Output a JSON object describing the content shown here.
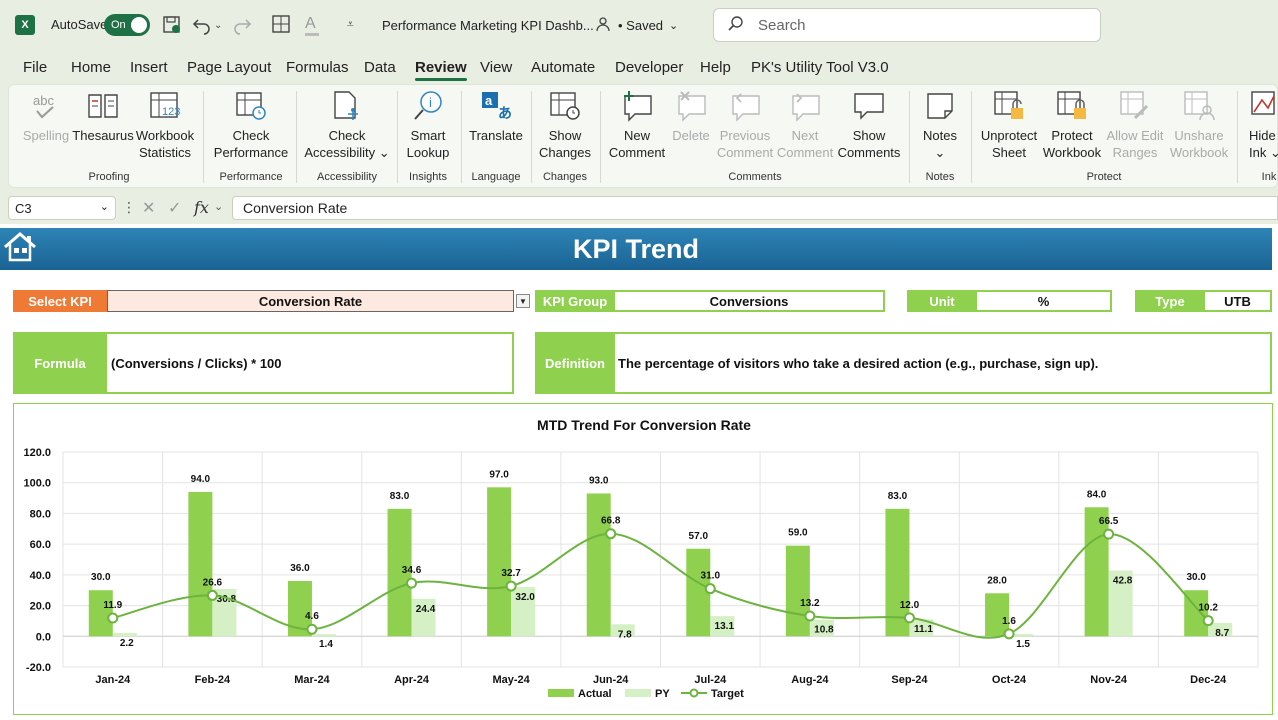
{
  "titlebar": {
    "logo": "X",
    "autosave_label": "AutoSave",
    "autosave_state": "On",
    "doc_title": "Performance Marketing KPI Dashb...",
    "saved_label": "• Saved",
    "search_placeholder": "Search"
  },
  "menu": {
    "tabs": [
      "File",
      "Home",
      "Insert",
      "Page Layout",
      "Formulas",
      "Data",
      "Review",
      "View",
      "Automate",
      "Developer",
      "Help",
      "PK's Utility Tool V3.0"
    ],
    "active": "Review"
  },
  "ribbon": {
    "buttons": [
      {
        "l1": "Spelling",
        "l2": "",
        "icon": "spelling-icon",
        "disabled": true
      },
      {
        "l1": "Thesaurus",
        "l2": "",
        "icon": "thesaurus-icon",
        "disabled": false
      },
      {
        "l1": "Workbook",
        "l2": "Statistics",
        "icon": "workbook-statistics-icon",
        "disabled": false
      },
      {
        "l1": "Check",
        "l2": "Performance",
        "icon": "check-performance-icon",
        "disabled": false
      },
      {
        "l1": "Check",
        "l2": "Accessibility ⌄",
        "icon": "check-accessibility-icon",
        "disabled": false
      },
      {
        "l1": "Smart",
        "l2": "Lookup",
        "icon": "smart-lookup-icon",
        "disabled": false
      },
      {
        "l1": "Translate",
        "l2": "",
        "icon": "translate-icon",
        "disabled": false
      },
      {
        "l1": "Show",
        "l2": "Changes",
        "icon": "show-changes-icon",
        "disabled": false
      },
      {
        "l1": "New",
        "l2": "Comment",
        "icon": "new-comment-icon",
        "disabled": false
      },
      {
        "l1": "Delete",
        "l2": "",
        "icon": "delete-comment-icon",
        "disabled": true
      },
      {
        "l1": "Previous",
        "l2": "Comment",
        "icon": "previous-comment-icon",
        "disabled": true
      },
      {
        "l1": "Next",
        "l2": "Comment",
        "icon": "next-comment-icon",
        "disabled": true
      },
      {
        "l1": "Show",
        "l2": "Comments",
        "icon": "show-comments-icon",
        "disabled": false
      },
      {
        "l1": "Notes",
        "l2": "⌄",
        "icon": "notes-icon",
        "disabled": false
      },
      {
        "l1": "Unprotect",
        "l2": "Sheet",
        "icon": "unprotect-sheet-icon",
        "disabled": false
      },
      {
        "l1": "Protect",
        "l2": "Workbook",
        "icon": "protect-workbook-icon",
        "disabled": false
      },
      {
        "l1": "Allow Edit",
        "l2": "Ranges",
        "icon": "allow-edit-ranges-icon",
        "disabled": true
      },
      {
        "l1": "Unshare",
        "l2": "Workbook",
        "icon": "unshare-workbook-icon",
        "disabled": true
      },
      {
        "l1": "Hide",
        "l2": "Ink ⌄",
        "icon": "hide-ink-icon",
        "disabled": false
      }
    ],
    "groups": [
      "Proofing",
      "Performance",
      "Accessibility",
      "Insights",
      "Language",
      "Changes",
      "Comments",
      "Notes",
      "Protect",
      "Ink"
    ]
  },
  "formula_bar": {
    "cell_ref": "C3",
    "fx": "fx",
    "content": "Conversion Rate"
  },
  "dashboard": {
    "banner_title": "KPI Trend",
    "select_kpi_label": "Select KPI",
    "select_kpi_value": "Conversion Rate",
    "kpi_group_label": "KPI Group",
    "kpi_group_value": "Conversions",
    "unit_label": "Unit",
    "unit_value": "%",
    "type_label": "Type",
    "type_value": "UTB",
    "formula_label": "Formula",
    "formula_value": "(Conversions / Clicks) * 100",
    "definition_label": "Definition",
    "definition_value": "The percentage of visitors who take a desired action (e.g., purchase, sign up)."
  },
  "chart_data": {
    "type": "bar",
    "title": "MTD Trend For Conversion Rate",
    "categories": [
      "Jan-24",
      "Feb-24",
      "Mar-24",
      "Apr-24",
      "May-24",
      "Jun-24",
      "Jul-24",
      "Aug-24",
      "Sep-24",
      "Oct-24",
      "Nov-24",
      "Dec-24"
    ],
    "ylim": [
      -20,
      120
    ],
    "yticks": [
      "-20.0",
      "0.0",
      "20.0",
      "40.0",
      "60.0",
      "80.0",
      "100.0",
      "120.0"
    ],
    "grid": true,
    "legend_position": "bottom",
    "series": [
      {
        "name": "Actual",
        "kind": "bar",
        "color": "#8fd14f",
        "values": [
          30.0,
          94.0,
          36.0,
          83.0,
          97.0,
          93.0,
          57.0,
          59.0,
          83.0,
          28.0,
          84.0,
          30.0
        ],
        "labels": [
          "30.0",
          "94.0",
          "36.0",
          "83.0",
          "97.0",
          "93.0",
          "57.0",
          "59.0",
          "83.0",
          "28.0",
          "84.0",
          "30.0"
        ]
      },
      {
        "name": "PY",
        "kind": "bar",
        "color": "#d4f0c4",
        "values": [
          2.2,
          30.8,
          1.4,
          24.4,
          32.0,
          7.8,
          13.1,
          10.8,
          11.1,
          1.5,
          42.8,
          8.7
        ],
        "labels": [
          "2.2",
          "30.8",
          "1.4",
          "24.4",
          "32.0",
          "7.8",
          "13.1",
          "10.8",
          "11.1",
          "1.5",
          "42.8",
          "8.7"
        ]
      },
      {
        "name": "Target",
        "kind": "line",
        "color": "#6cb33f",
        "values": [
          11.9,
          26.6,
          4.6,
          34.6,
          32.7,
          66.8,
          31.0,
          13.2,
          12.0,
          1.6,
          66.5,
          10.2
        ],
        "labels": [
          "11.9",
          "26.6",
          "4.6",
          "34.6",
          "32.7",
          "66.8",
          "31.0",
          "13.2",
          "12.0",
          "1.6",
          "66.5",
          "10.2"
        ]
      }
    ]
  }
}
